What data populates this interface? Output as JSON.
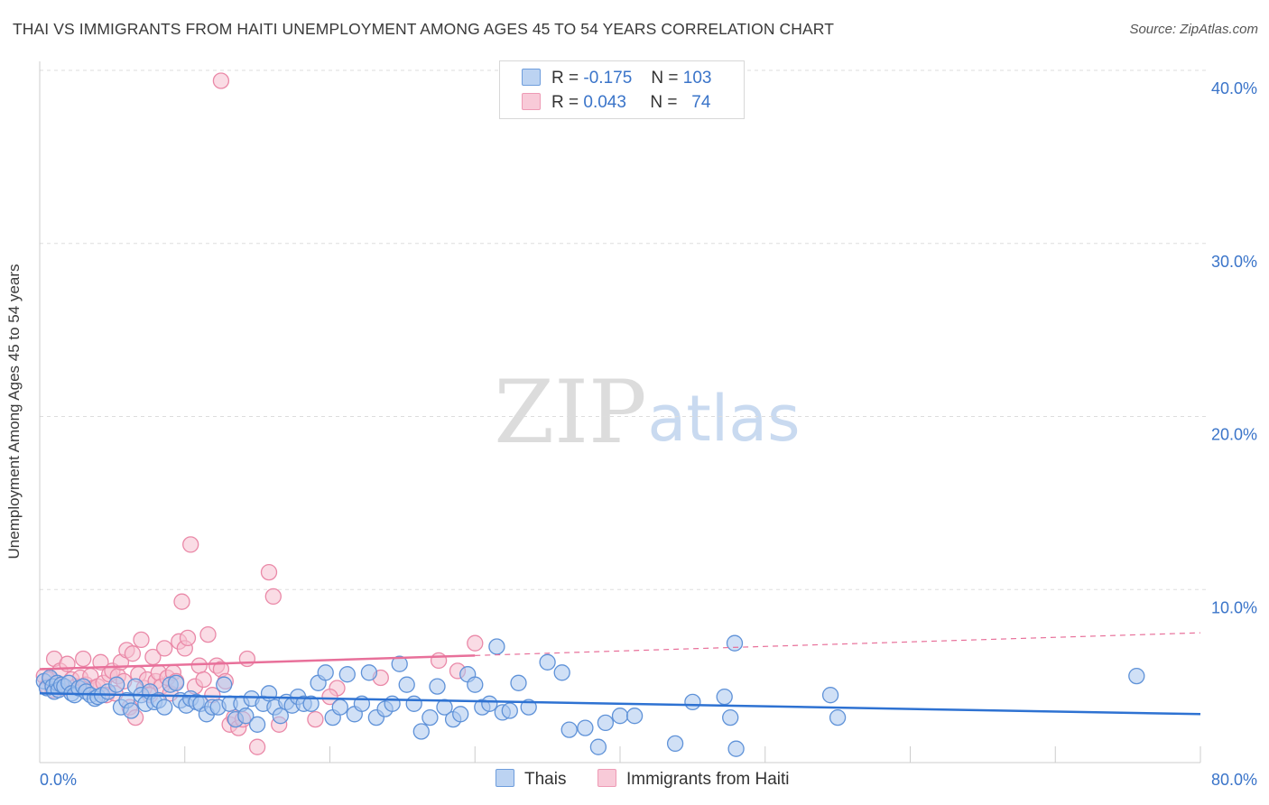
{
  "title": "THAI VS IMMIGRANTS FROM HAITI UNEMPLOYMENT AMONG AGES 45 TO 54 YEARS CORRELATION CHART",
  "source": "Source: ZipAtlas.com",
  "watermark": {
    "zip": "ZIP",
    "atlas": "atlas"
  },
  "legend": {
    "r_label": "R =",
    "n_label": "N =",
    "rows": [
      {
        "series": "Thais",
        "r": "-0.175",
        "n": "103"
      },
      {
        "series": "Immigrants from Haiti",
        "r": "0.043",
        "n": "74"
      }
    ]
  },
  "colors": {
    "thais_fill": "#a9c6ee",
    "thais_stroke": "#5f92d8",
    "thais_line": "#2e72d2",
    "haiti_fill": "#f6bfd0",
    "haiti_stroke": "#ea89a8",
    "haiti_line": "#e8709a",
    "axis_label": "#3a74c9",
    "grid": "#dddddd"
  },
  "chart_data": {
    "type": "scatter",
    "title": "THAI VS IMMIGRANTS FROM HAITI UNEMPLOYMENT AMONG AGES 45 TO 54 YEARS CORRELATION CHART",
    "xlabel": "",
    "ylabel": "Unemployment Among Ages 45 to 54 years",
    "xlim": [
      0,
      80
    ],
    "ylim": [
      0,
      40
    ],
    "x_tick_labels": [
      "0.0%",
      "80.0%"
    ],
    "y_ticks": [
      10,
      20,
      30,
      40
    ],
    "y_tick_labels": [
      "10.0%",
      "20.0%",
      "30.0%",
      "40.0%"
    ],
    "grid": true,
    "legend_position": "top-center",
    "series": [
      {
        "name": "Thais",
        "r": -0.175,
        "n": 103,
        "trend": {
          "x": [
            0,
            80
          ],
          "y": [
            4.0,
            2.8
          ],
          "style": "solid"
        },
        "points": [
          [
            0.3,
            4.7
          ],
          [
            0.5,
            4.3
          ],
          [
            0.7,
            4.9
          ],
          [
            0.9,
            4.4
          ],
          [
            1.0,
            4.1
          ],
          [
            1.2,
            4.6
          ],
          [
            1.3,
            4.2
          ],
          [
            1.5,
            4.5
          ],
          [
            1.7,
            4.4
          ],
          [
            2.0,
            4.6
          ],
          [
            2.2,
            4.0
          ],
          [
            2.4,
            3.9
          ],
          [
            2.7,
            4.3
          ],
          [
            3.0,
            4.4
          ],
          [
            3.2,
            4.1
          ],
          [
            3.5,
            3.9
          ],
          [
            3.8,
            3.7
          ],
          [
            4.0,
            3.8
          ],
          [
            4.3,
            3.9
          ],
          [
            4.7,
            4.1
          ],
          [
            5.3,
            4.5
          ],
          [
            5.6,
            3.2
          ],
          [
            6.0,
            3.6
          ],
          [
            6.3,
            3.0
          ],
          [
            6.6,
            4.4
          ],
          [
            7.0,
            3.9
          ],
          [
            7.3,
            3.4
          ],
          [
            7.6,
            4.1
          ],
          [
            7.9,
            3.5
          ],
          [
            8.2,
            3.6
          ],
          [
            8.6,
            3.2
          ],
          [
            9.0,
            4.5
          ],
          [
            9.4,
            4.6
          ],
          [
            9.7,
            3.6
          ],
          [
            10.1,
            3.3
          ],
          [
            10.4,
            3.7
          ],
          [
            10.8,
            3.5
          ],
          [
            11.1,
            3.4
          ],
          [
            11.5,
            2.8
          ],
          [
            11.9,
            3.2
          ],
          [
            12.3,
            3.2
          ],
          [
            12.7,
            4.5
          ],
          [
            13.1,
            3.4
          ],
          [
            13.5,
            2.5
          ],
          [
            13.9,
            3.4
          ],
          [
            14.2,
            2.7
          ],
          [
            14.6,
            3.7
          ],
          [
            15.0,
            2.2
          ],
          [
            15.4,
            3.4
          ],
          [
            15.8,
            4.0
          ],
          [
            16.2,
            3.2
          ],
          [
            16.6,
            2.7
          ],
          [
            17.0,
            3.5
          ],
          [
            17.4,
            3.3
          ],
          [
            17.8,
            3.8
          ],
          [
            18.2,
            3.4
          ],
          [
            18.7,
            3.4
          ],
          [
            19.2,
            4.6
          ],
          [
            19.7,
            5.2
          ],
          [
            20.2,
            2.6
          ],
          [
            20.7,
            3.2
          ],
          [
            21.2,
            5.1
          ],
          [
            21.7,
            2.8
          ],
          [
            22.2,
            3.4
          ],
          [
            22.7,
            5.2
          ],
          [
            23.2,
            2.6
          ],
          [
            23.8,
            3.1
          ],
          [
            24.3,
            3.4
          ],
          [
            24.8,
            5.7
          ],
          [
            25.3,
            4.5
          ],
          [
            25.8,
            3.4
          ],
          [
            26.3,
            1.8
          ],
          [
            26.9,
            2.6
          ],
          [
            27.4,
            4.4
          ],
          [
            27.9,
            3.2
          ],
          [
            28.5,
            2.5
          ],
          [
            29.0,
            2.8
          ],
          [
            29.5,
            5.1
          ],
          [
            30.0,
            4.5
          ],
          [
            30.5,
            3.2
          ],
          [
            31.0,
            3.4
          ],
          [
            31.5,
            6.7
          ],
          [
            31.9,
            2.9
          ],
          [
            32.4,
            3.0
          ],
          [
            33.0,
            4.6
          ],
          [
            33.7,
            3.2
          ],
          [
            35.0,
            5.8
          ],
          [
            36.0,
            5.2
          ],
          [
            36.5,
            1.9
          ],
          [
            37.6,
            2.0
          ],
          [
            38.5,
            0.9
          ],
          [
            39.0,
            2.3
          ],
          [
            40.0,
            2.7
          ],
          [
            41.0,
            2.7
          ],
          [
            43.8,
            1.1
          ],
          [
            45.0,
            3.5
          ],
          [
            47.2,
            3.8
          ],
          [
            47.6,
            2.6
          ],
          [
            47.9,
            6.9
          ],
          [
            48.0,
            0.8
          ],
          [
            54.5,
            3.9
          ],
          [
            55.0,
            2.6
          ],
          [
            75.6,
            5.0
          ]
        ]
      },
      {
        "name": "Immigrants from Haiti",
        "r": 0.043,
        "n": 74,
        "trend": {
          "x": [
            0,
            80
          ],
          "y": [
            5.4,
            7.5
          ],
          "style": "solid to x=30, dashed beyond",
          "solid_until": 30
        },
        "points": [
          [
            0.3,
            5.0
          ],
          [
            0.5,
            4.4
          ],
          [
            0.7,
            4.8
          ],
          [
            0.9,
            4.2
          ],
          [
            1.0,
            6.0
          ],
          [
            1.2,
            4.6
          ],
          [
            1.4,
            5.3
          ],
          [
            1.6,
            4.3
          ],
          [
            1.9,
            5.7
          ],
          [
            2.2,
            4.8
          ],
          [
            2.5,
            4.4
          ],
          [
            2.8,
            4.9
          ],
          [
            3.0,
            6.0
          ],
          [
            3.2,
            4.5
          ],
          [
            3.5,
            5.0
          ],
          [
            3.7,
            4.3
          ],
          [
            4.0,
            4.4
          ],
          [
            4.2,
            5.8
          ],
          [
            4.4,
            4.6
          ],
          [
            4.6,
            3.9
          ],
          [
            4.8,
            5.1
          ],
          [
            5.0,
            5.3
          ],
          [
            5.2,
            4.0
          ],
          [
            5.4,
            5.0
          ],
          [
            5.6,
            5.8
          ],
          [
            5.8,
            4.7
          ],
          [
            6.0,
            6.5
          ],
          [
            6.2,
            3.2
          ],
          [
            6.4,
            6.3
          ],
          [
            6.6,
            2.6
          ],
          [
            6.8,
            5.1
          ],
          [
            7.0,
            7.1
          ],
          [
            7.2,
            4.3
          ],
          [
            7.4,
            4.8
          ],
          [
            7.6,
            3.9
          ],
          [
            7.8,
            6.1
          ],
          [
            8.0,
            4.7
          ],
          [
            8.2,
            5.2
          ],
          [
            8.4,
            4.4
          ],
          [
            8.6,
            6.6
          ],
          [
            8.8,
            4.9
          ],
          [
            9.0,
            4.0
          ],
          [
            9.2,
            5.2
          ],
          [
            9.4,
            4.7
          ],
          [
            9.6,
            7.0
          ],
          [
            9.8,
            9.3
          ],
          [
            10.0,
            6.6
          ],
          [
            10.2,
            7.2
          ],
          [
            10.4,
            12.6
          ],
          [
            10.7,
            4.4
          ],
          [
            11.0,
            5.6
          ],
          [
            11.3,
            4.8
          ],
          [
            11.6,
            7.4
          ],
          [
            11.9,
            3.9
          ],
          [
            12.2,
            5.6
          ],
          [
            12.5,
            5.4
          ],
          [
            12.8,
            4.7
          ],
          [
            13.1,
            2.2
          ],
          [
            13.4,
            2.6
          ],
          [
            13.7,
            2.0
          ],
          [
            14.0,
            2.5
          ],
          [
            14.3,
            6.0
          ],
          [
            15.0,
            0.9
          ],
          [
            15.8,
            11.0
          ],
          [
            16.1,
            9.6
          ],
          [
            16.5,
            2.2
          ],
          [
            19.0,
            2.5
          ],
          [
            20.5,
            4.3
          ],
          [
            23.5,
            4.9
          ],
          [
            27.5,
            5.9
          ],
          [
            28.8,
            5.3
          ],
          [
            30.0,
            6.9
          ],
          [
            12.5,
            39.4
          ],
          [
            20.0,
            3.8
          ]
        ]
      }
    ]
  }
}
